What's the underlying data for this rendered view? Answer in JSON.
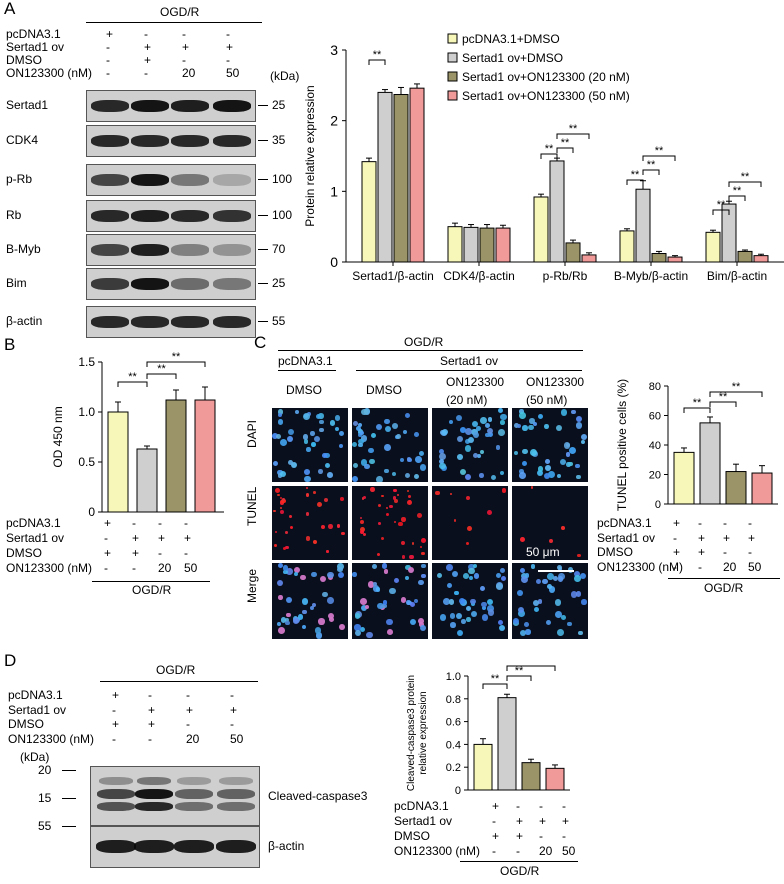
{
  "panels": {
    "A": {
      "letter": "A",
      "condition": "OGD/R",
      "row_labels": [
        "pcDNA3.1",
        "Sertad1 ov",
        "DMSO",
        "ON123300 (nM)"
      ],
      "row_values": [
        [
          "+",
          "-",
          "-",
          "-"
        ],
        [
          "-",
          "+",
          "+",
          "+"
        ],
        [
          "-",
          "+",
          "-",
          "-"
        ],
        [
          "-",
          "-",
          "20",
          "50"
        ]
      ],
      "kda_header": "(kDa)",
      "blots": [
        {
          "label": "Sertad1",
          "marker": "25"
        },
        {
          "label": "CDK4",
          "marker": "35"
        },
        {
          "label": "p-Rb",
          "marker": "100"
        },
        {
          "label": "Rb",
          "marker": "100"
        },
        {
          "label": "B-Myb",
          "marker": "70"
        },
        {
          "label": "Bim",
          "marker": "25"
        },
        {
          "label": "β-actin",
          "marker": "55"
        }
      ]
    },
    "B": {
      "letter": "B",
      "condition": "OGD/R",
      "row_labels": [
        "pcDNA3.1",
        "Sertad1 ov",
        "DMSO",
        "ON123300 (nM)"
      ],
      "row_values": [
        [
          "+",
          "-",
          "-",
          "-"
        ],
        [
          "-",
          "+",
          "+",
          "+"
        ],
        [
          "+",
          "+",
          "-",
          "-"
        ],
        [
          "-",
          "-",
          "20",
          "50"
        ]
      ]
    },
    "C": {
      "letter": "C",
      "condition": "OGD/R",
      "group_left": "pcDNA3.1",
      "group_right": "Sertad1 ov",
      "col_labels": [
        "DMSO",
        "DMSO",
        "ON123300",
        "ON123300"
      ],
      "col_sublabels": [
        "",
        "",
        "(20 nM)",
        "(50 nM)"
      ],
      "row_labels": [
        "DAPI",
        "TUNEL",
        "Merge"
      ],
      "scale_bar": "50 μm",
      "chart_rows": [
        "pcDNA3.1",
        "Sertad1 ov",
        "DMSO",
        "ON123300 (nM)"
      ],
      "chart_row_values": [
        [
          "+",
          "-",
          "-",
          "-"
        ],
        [
          "-",
          "+",
          "+",
          "+"
        ],
        [
          "+",
          "+",
          "-",
          "-"
        ],
        [
          "-",
          "-",
          "20",
          "50"
        ]
      ]
    },
    "D": {
      "letter": "D",
      "condition": "OGD/R",
      "row_labels": [
        "pcDNA3.1",
        "Sertad1 ov",
        "DMSO",
        "ON123300 (nM)"
      ],
      "row_values": [
        [
          "+",
          "-",
          "-",
          "-"
        ],
        [
          "-",
          "+",
          "+",
          "+"
        ],
        [
          "+",
          "+",
          "-",
          "-"
        ],
        [
          "-",
          "-",
          "20",
          "50"
        ]
      ],
      "kda_header": "(kDa)",
      "markers": [
        "20",
        "15",
        "55"
      ],
      "blots": [
        "Cleaved-caspase3",
        "β-actin"
      ]
    }
  },
  "colors": {
    "bar1": "#f6f7b8",
    "bar2": "#cfcfcf",
    "bar3": "#9a9468",
    "bar4": "#f19a9a"
  },
  "chart_data": [
    {
      "type": "bar",
      "categories": [
        "Sertad1/β-actin",
        "CDK4/β-actin",
        "p-Rb/Rb",
        "B-Myb/β-actin",
        "Bim/β-actin"
      ],
      "series": [
        {
          "name": "pcDNA3.1+DMSO",
          "values": [
            1.42,
            0.5,
            0.92,
            0.44,
            0.42
          ]
        },
        {
          "name": "Sertad1 ov+DMSO",
          "values": [
            2.4,
            0.49,
            1.43,
            1.03,
            0.82
          ]
        },
        {
          "name": "Sertad1 ov+ON123300 (20 nM)",
          "values": [
            2.37,
            0.48,
            0.27,
            0.12,
            0.15
          ]
        },
        {
          "name": "Sertad1 ov+ON123300 (50 nM)",
          "values": [
            2.46,
            0.48,
            0.1,
            0.07,
            0.09
          ]
        }
      ],
      "errors": [
        [
          0.05,
          0.05,
          0.04,
          0.03,
          0.03
        ],
        [
          0.04,
          0.04,
          0.04,
          0.12,
          0.04
        ],
        [
          0.1,
          0.05,
          0.04,
          0.03,
          0.02
        ],
        [
          0.06,
          0.04,
          0.03,
          0.02,
          0.02
        ]
      ],
      "ylabel": "Protein relative expression",
      "ylim": [
        0,
        3
      ],
      "yticks": [
        0,
        1,
        2,
        3
      ],
      "significance": "**",
      "legend": "top-right"
    },
    {
      "type": "bar",
      "categories": [
        "1",
        "2",
        "3",
        "4"
      ],
      "values": [
        1.0,
        0.63,
        1.12,
        1.12
      ],
      "errors": [
        0.1,
        0.03,
        0.1,
        0.13
      ],
      "ylabel": "OD 450 nm",
      "ylim": [
        0,
        1.5
      ],
      "yticks": [
        "0",
        "0.5",
        "1.0",
        "1.5"
      ],
      "significance": "**"
    },
    {
      "type": "bar",
      "categories": [
        "1",
        "2",
        "3",
        "4"
      ],
      "values": [
        35,
        55,
        22,
        21
      ],
      "errors": [
        3,
        4,
        5,
        5
      ],
      "ylabel": "TUNEL positive cells (%)",
      "ylim": [
        0,
        80
      ],
      "yticks": [
        "0",
        "20",
        "40",
        "60",
        "80"
      ],
      "significance": "**"
    },
    {
      "type": "bar",
      "categories": [
        "1",
        "2",
        "3",
        "4"
      ],
      "values": [
        0.4,
        0.81,
        0.24,
        0.19
      ],
      "errors": [
        0.05,
        0.03,
        0.03,
        0.03
      ],
      "ylabel": "Cleaved-caspase3 protein relative expression",
      "ylabel_lines": [
        "Cleaved-caspase3 protein",
        "relative expression"
      ],
      "ylim": [
        0,
        1.0
      ],
      "yticks": [
        "0",
        "0.2",
        "0.4",
        "0.6",
        "0.8",
        "1.0"
      ],
      "significance": "**"
    }
  ]
}
